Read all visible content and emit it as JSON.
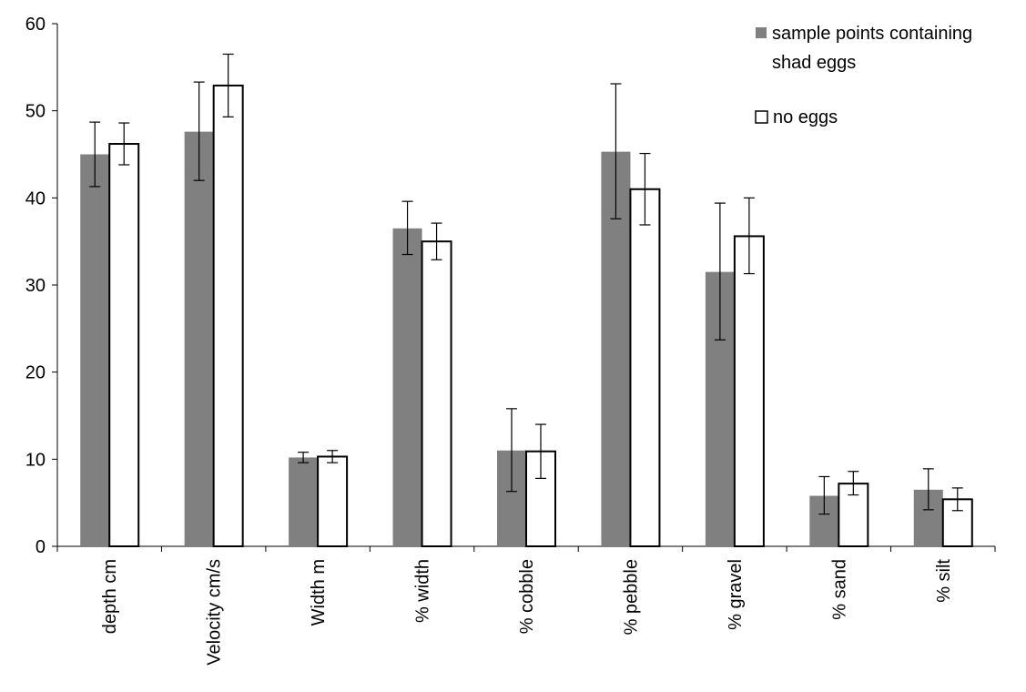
{
  "chart_data": {
    "type": "bar",
    "title": "",
    "xlabel": "",
    "ylabel": "",
    "ylim": [
      0,
      60
    ],
    "yticks": [
      0,
      10,
      20,
      30,
      40,
      50,
      60
    ],
    "categories": [
      "depth cm",
      "Velocity cm/s",
      "Width m",
      "% width",
      "% cobble",
      "% pebble",
      "% gravel",
      "% sand",
      "% silt"
    ],
    "series": [
      {
        "name": "sample points containing shad eggs",
        "color": "#808080",
        "values": [
          45.0,
          47.6,
          10.2,
          36.5,
          11.0,
          45.3,
          31.5,
          5.8,
          6.5
        ],
        "err_low": [
          41.3,
          42.0,
          9.6,
          33.5,
          6.3,
          37.6,
          23.7,
          3.7,
          4.2
        ],
        "err_high": [
          48.7,
          53.3,
          10.8,
          39.6,
          15.8,
          53.1,
          39.4,
          8.0,
          8.9
        ]
      },
      {
        "name": "no eggs",
        "color": "#ffffff",
        "values": [
          46.2,
          52.9,
          10.3,
          35.0,
          10.9,
          41.0,
          35.6,
          7.2,
          5.4
        ],
        "err_low": [
          43.8,
          49.3,
          9.6,
          32.9,
          7.8,
          36.9,
          31.3,
          5.9,
          4.1
        ],
        "err_high": [
          48.6,
          56.5,
          11.0,
          37.1,
          14.0,
          45.1,
          40.0,
          8.6,
          6.7
        ]
      }
    ],
    "legend_position": "top-right",
    "grid": false
  },
  "legend": {
    "series1_line1": "sample points containing",
    "series1_line2": "shad eggs",
    "series2": "no eggs"
  }
}
